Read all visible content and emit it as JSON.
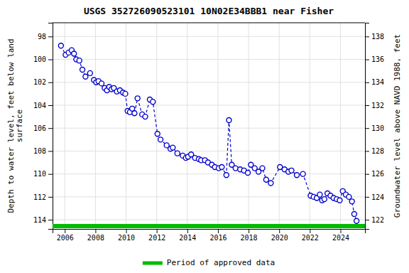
{
  "chart_data": {
    "type": "line",
    "title": "USGS 352726090523101 10N02E34BBB1 near Fisher",
    "y_label": "Depth to water level, feet below land\nsurface",
    "y2_label": "Groundwater level above NAVD 1988, feet",
    "xlim": [
      2005.2,
      2025.6
    ],
    "ylim": [
      114.8,
      96.8
    ],
    "y2lim": [
      121.2,
      139.2
    ],
    "xticks": [
      2006,
      2008,
      2010,
      2012,
      2014,
      2016,
      2018,
      2020,
      2022,
      2024
    ],
    "yticks": [
      98,
      100,
      102,
      104,
      106,
      108,
      110,
      112,
      114
    ],
    "y2ticks": [
      122,
      124,
      126,
      128,
      130,
      132,
      134,
      136,
      138
    ],
    "grid": true,
    "legend": "bottom",
    "series": [
      {
        "color": "#0000cc",
        "marker": "circle",
        "line_style": "dashed",
        "x": [
          2005.75,
          2006.05,
          2006.25,
          2006.45,
          2006.6,
          2006.75,
          2006.95,
          2007.15,
          2007.35,
          2007.65,
          2007.9,
          2008.05,
          2008.2,
          2008.4,
          2008.6,
          2008.75,
          2008.9,
          2009.05,
          2009.2,
          2009.4,
          2009.6,
          2009.8,
          2009.95,
          2010.1,
          2010.25,
          2010.4,
          2010.55,
          2010.75,
          2011.05,
          2011.25,
          2011.55,
          2011.75,
          2012.05,
          2012.25,
          2012.65,
          2012.9,
          2013.05,
          2013.35,
          2013.7,
          2013.9,
          2014.05,
          2014.25,
          2014.5,
          2014.75,
          2014.9,
          2015.15,
          2015.35,
          2015.6,
          2015.8,
          2016.05,
          2016.25,
          2016.55,
          2016.72,
          2016.9,
          2017.15,
          2017.45,
          2017.7,
          2017.95,
          2018.15,
          2018.4,
          2018.65,
          2018.9,
          2019.15,
          2019.45,
          2020.05,
          2020.35,
          2020.6,
          2020.8,
          2021.15,
          2021.55,
          2022.05,
          2022.25,
          2022.45,
          2022.65,
          2022.8,
          2022.95,
          2023.15,
          2023.35,
          2023.55,
          2023.75,
          2023.95,
          2024.15,
          2024.35,
          2024.55,
          2024.75,
          2024.9,
          2025.05
        ],
        "values": [
          98.8,
          99.6,
          99.4,
          99.2,
          99.5,
          100.0,
          100.1,
          100.9,
          101.5,
          101.2,
          101.8,
          102.0,
          101.9,
          102.1,
          102.5,
          102.7,
          102.4,
          102.6,
          102.5,
          102.8,
          102.7,
          102.9,
          103.0,
          104.5,
          104.6,
          104.3,
          104.7,
          103.4,
          104.8,
          105.0,
          103.5,
          103.7,
          106.5,
          107.0,
          107.5,
          107.8,
          107.7,
          108.2,
          108.4,
          108.6,
          108.5,
          108.3,
          108.6,
          108.7,
          108.8,
          108.8,
          109.0,
          109.2,
          109.4,
          109.5,
          109.4,
          110.1,
          105.3,
          109.2,
          109.5,
          109.6,
          109.7,
          109.9,
          109.2,
          109.5,
          109.8,
          109.5,
          110.5,
          110.8,
          109.4,
          109.6,
          109.8,
          109.7,
          110.1,
          110.0,
          111.9,
          112.0,
          112.1,
          111.8,
          112.3,
          112.2,
          111.7,
          111.9,
          112.1,
          112.2,
          112.3,
          111.5,
          111.8,
          112.0,
          112.4,
          113.5,
          114.1
        ]
      },
      {
        "name": "Period of approved data",
        "color": "#00bb00",
        "line_style": "solid",
        "x": [
          2005.2,
          2025.6
        ],
        "values": [
          114.55,
          114.55
        ]
      }
    ]
  }
}
